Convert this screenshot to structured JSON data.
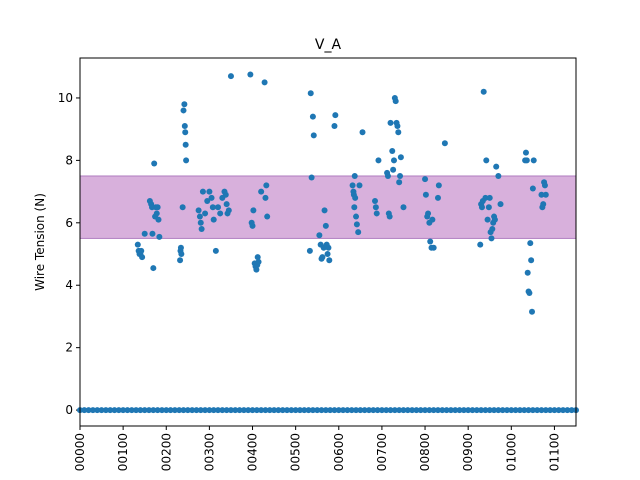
{
  "chart_data": {
    "type": "scatter",
    "title": "V_A",
    "ylabel": "Wire Tension (N)",
    "color": "#1f77b4",
    "band": {
      "range": [
        5.5,
        7.5
      ],
      "color": "#d8b0dc",
      "edge": "#b07cc0"
    },
    "xlim": [
      0,
      1150
    ],
    "ylim": [
      -0.51,
      11.28
    ],
    "yticks": [
      0,
      2,
      4,
      6,
      8,
      10
    ],
    "xticks": [
      {
        "value": 0,
        "label": "00000"
      },
      {
        "value": 100,
        "label": "00100"
      },
      {
        "value": 200,
        "label": "00200"
      },
      {
        "value": 300,
        "label": "00300"
      },
      {
        "value": 400,
        "label": "00400"
      },
      {
        "value": 500,
        "label": "00500"
      },
      {
        "value": 600,
        "label": "00600"
      },
      {
        "value": 700,
        "label": "00700"
      },
      {
        "value": 800,
        "label": "00800"
      },
      {
        "value": 900,
        "label": "00900"
      },
      {
        "value": 1000,
        "label": "01000"
      },
      {
        "value": 1100,
        "label": "01100"
      }
    ],
    "x": [
      0,
      10,
      20,
      30,
      40,
      50,
      60,
      70,
      80,
      90,
      100,
      110,
      120,
      130,
      140,
      150,
      160,
      170,
      180,
      190,
      200,
      210,
      220,
      230,
      240,
      250,
      260,
      270,
      280,
      290,
      300,
      310,
      320,
      330,
      340,
      350,
      360,
      370,
      380,
      390,
      400,
      410,
      420,
      430,
      440,
      450,
      460,
      470,
      480,
      490,
      500,
      510,
      520,
      530,
      540,
      550,
      560,
      570,
      580,
      590,
      600,
      610,
      620,
      630,
      640,
      650,
      660,
      670,
      680,
      690,
      700,
      710,
      720,
      730,
      740,
      750,
      760,
      770,
      780,
      790,
      800,
      810,
      820,
      830,
      840,
      850,
      860,
      870,
      880,
      890,
      900,
      910,
      920,
      930,
      940,
      950,
      960,
      970,
      980,
      990,
      1000,
      1010,
      1020,
      1030,
      1040,
      1050,
      1060,
      1070,
      1080,
      1090,
      1100,
      1110,
      1120,
      1130,
      1140,
      1150,
      134,
      136,
      138,
      140,
      142,
      144,
      150,
      162,
      165,
      167,
      168,
      170,
      172,
      174,
      176,
      178,
      180,
      182,
      184,
      232,
      233,
      234,
      235,
      238,
      240,
      242,
      243,
      244,
      245,
      246,
      275,
      278,
      280,
      282,
      285,
      290,
      295,
      300,
      305,
      308,
      310,
      315,
      320,
      325,
      330,
      335,
      338,
      340,
      342,
      345,
      350,
      395,
      398,
      400,
      402,
      405,
      407,
      409,
      411,
      412,
      414,
      420,
      428,
      430,
      432,
      434,
      533,
      535,
      537,
      540,
      542,
      555,
      558,
      560,
      562,
      565,
      567,
      570,
      572,
      574,
      576,
      578,
      590,
      592,
      632,
      634,
      635,
      636,
      637,
      638,
      640,
      642,
      645,
      648,
      655,
      684,
      686,
      688,
      692,
      712,
      714,
      716,
      718,
      720,
      724,
      726,
      728,
      730,
      732,
      734,
      736,
      738,
      740,
      742,
      744,
      750,
      800,
      802,
      805,
      807,
      810,
      812,
      815,
      817,
      820,
      830,
      832,
      846,
      928,
      930,
      932,
      934,
      936,
      940,
      942,
      945,
      948,
      950,
      952,
      954,
      956,
      958,
      960,
      962,
      965,
      970,
      975,
      1032,
      1034,
      1036,
      1038,
      1040,
      1042,
      1044,
      1046,
      1048,
      1050,
      1052,
      1070,
      1072,
      1074,
      1076,
      1078,
      1080
    ],
    "values": [
      0,
      0,
      0,
      0,
      0,
      0,
      0,
      0,
      0,
      0,
      0,
      0,
      0,
      0,
      0,
      0,
      0,
      0,
      0,
      0,
      0,
      0,
      0,
      0,
      0,
      0,
      0,
      0,
      0,
      0,
      0,
      0,
      0,
      0,
      0,
      0,
      0,
      0,
      0,
      0,
      0,
      0,
      0,
      0,
      0,
      0,
      0,
      0,
      0,
      0,
      0,
      0,
      0,
      0,
      0,
      0,
      0,
      0,
      0,
      0,
      0,
      0,
      0,
      0,
      0,
      0,
      0,
      0,
      0,
      0,
      0,
      0,
      0,
      0,
      0,
      0,
      0,
      0,
      0,
      0,
      0,
      0,
      0,
      0,
      0,
      0,
      0,
      0,
      0,
      0,
      0,
      0,
      0,
      0,
      0,
      0,
      0,
      0,
      0,
      0,
      0,
      0,
      0,
      0,
      0,
      0,
      0,
      0,
      0,
      0,
      0,
      0,
      0,
      0,
      0,
      0,
      5.3,
      5.1,
      5.0,
      5.0,
      5.1,
      4.9,
      5.65,
      6.7,
      6.6,
      6.5,
      5.65,
      4.55,
      7.9,
      6.2,
      6.5,
      6.3,
      6.5,
      6.1,
      5.55,
      4.8,
      5.1,
      5.2,
      5.0,
      6.5,
      9.6,
      9.8,
      9.1,
      8.9,
      8.5,
      8.0,
      6.4,
      6.2,
      6.0,
      5.8,
      7.0,
      6.3,
      6.7,
      7.0,
      6.8,
      6.5,
      6.1,
      5.1,
      6.5,
      6.3,
      6.8,
      7.0,
      6.9,
      6.6,
      6.3,
      6.4,
      10.7,
      10.75,
      6.0,
      5.9,
      6.4,
      4.7,
      4.6,
      4.5,
      4.65,
      4.9,
      4.75,
      7.0,
      10.5,
      6.8,
      7.2,
      6.2,
      5.1,
      10.15,
      7.45,
      9.4,
      8.8,
      5.6,
      5.3,
      4.85,
      4.9,
      5.2,
      6.4,
      5.9,
      5.3,
      5.0,
      5.2,
      4.8,
      9.1,
      9.45,
      7.2,
      7.0,
      6.9,
      6.5,
      7.5,
      6.8,
      6.2,
      5.95,
      5.7,
      7.2,
      8.9,
      6.7,
      6.5,
      6.3,
      8.0,
      7.6,
      7.5,
      6.3,
      6.2,
      9.2,
      8.3,
      7.7,
      8.0,
      10.0,
      9.9,
      9.2,
      9.1,
      8.9,
      7.3,
      7.5,
      8.1,
      6.5,
      7.4,
      6.9,
      6.2,
      6.3,
      6.0,
      5.4,
      5.2,
      6.1,
      5.2,
      6.8,
      7.2,
      8.55,
      5.3,
      6.6,
      6.5,
      6.7,
      10.2,
      6.8,
      8.0,
      6.1,
      6.5,
      6.8,
      5.7,
      5.5,
      5.8,
      6.0,
      6.2,
      6.1,
      7.8,
      7.5,
      6.6,
      8.0,
      8.25,
      8.0,
      4.4,
      3.8,
      3.75,
      5.35,
      4.8,
      3.15,
      7.1,
      8.0,
      6.9,
      6.5,
      6.6,
      7.3,
      7.2,
      6.9
    ]
  }
}
